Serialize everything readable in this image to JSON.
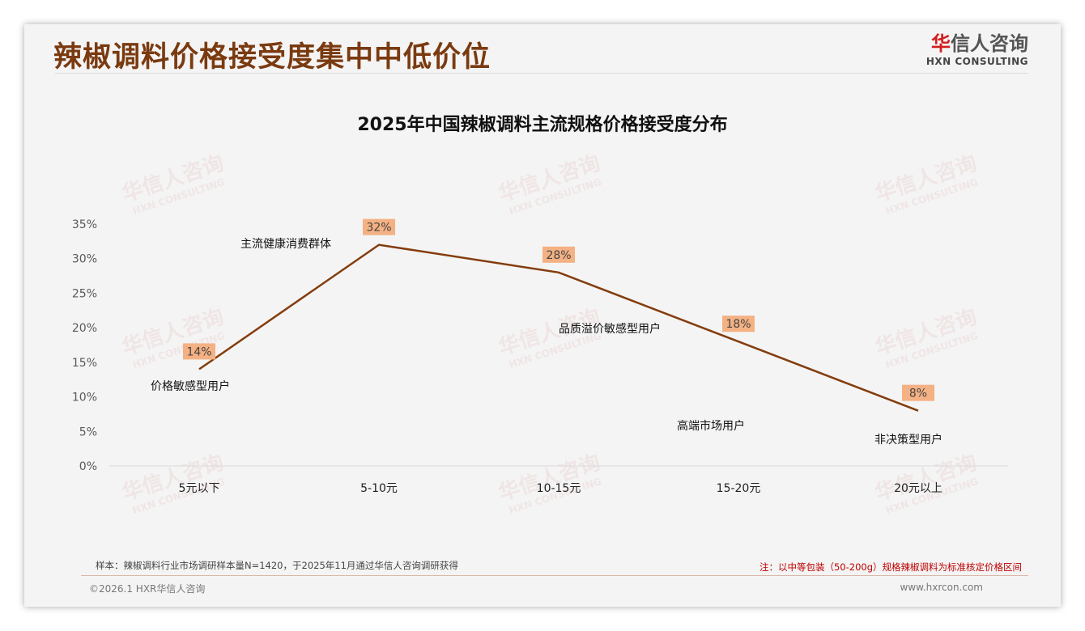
{
  "header": {
    "title": "辣椒调料价格接受度集中中低价位",
    "logo_cn_red": "华",
    "logo_cn": "信人咨询",
    "logo_en": "HXN CONSULTING"
  },
  "watermark": {
    "cn": "华信人咨询",
    "en": "HXN CONSULTING"
  },
  "chart_data": {
    "type": "line",
    "title": "2025年中国辣椒调料主流规格价格接受度分布",
    "categories": [
      "5元以下",
      "5-10元",
      "10-15元",
      "15-20元",
      "20元以上"
    ],
    "values": [
      14,
      32,
      28,
      18,
      8
    ],
    "data_labels": [
      "14%",
      "32%",
      "28%",
      "18%",
      "8%"
    ],
    "ylim": [
      0,
      35
    ],
    "yticks": [
      "0%",
      "5%",
      "10%",
      "15%",
      "20%",
      "25%",
      "30%",
      "35%"
    ],
    "line_color": "#843c0c",
    "label_bg": "#f4b183",
    "annotations": [
      "价格敏感型用户",
      "主流健康消费群体",
      "品质溢价敏感型用户",
      "高端市场用户",
      "非决策型用户"
    ]
  },
  "notes": {
    "sample": "样本：辣椒调料行业市场调研样本量N=1420，于2025年11月通过华信人咨询调研获得",
    "remark": "注：以中等包装（50-200g）规格辣椒调料为标准核定价格区间"
  },
  "footer": {
    "copyright": "©2026.1 HXR华信人咨询",
    "site": "www.hxrcon.com"
  }
}
